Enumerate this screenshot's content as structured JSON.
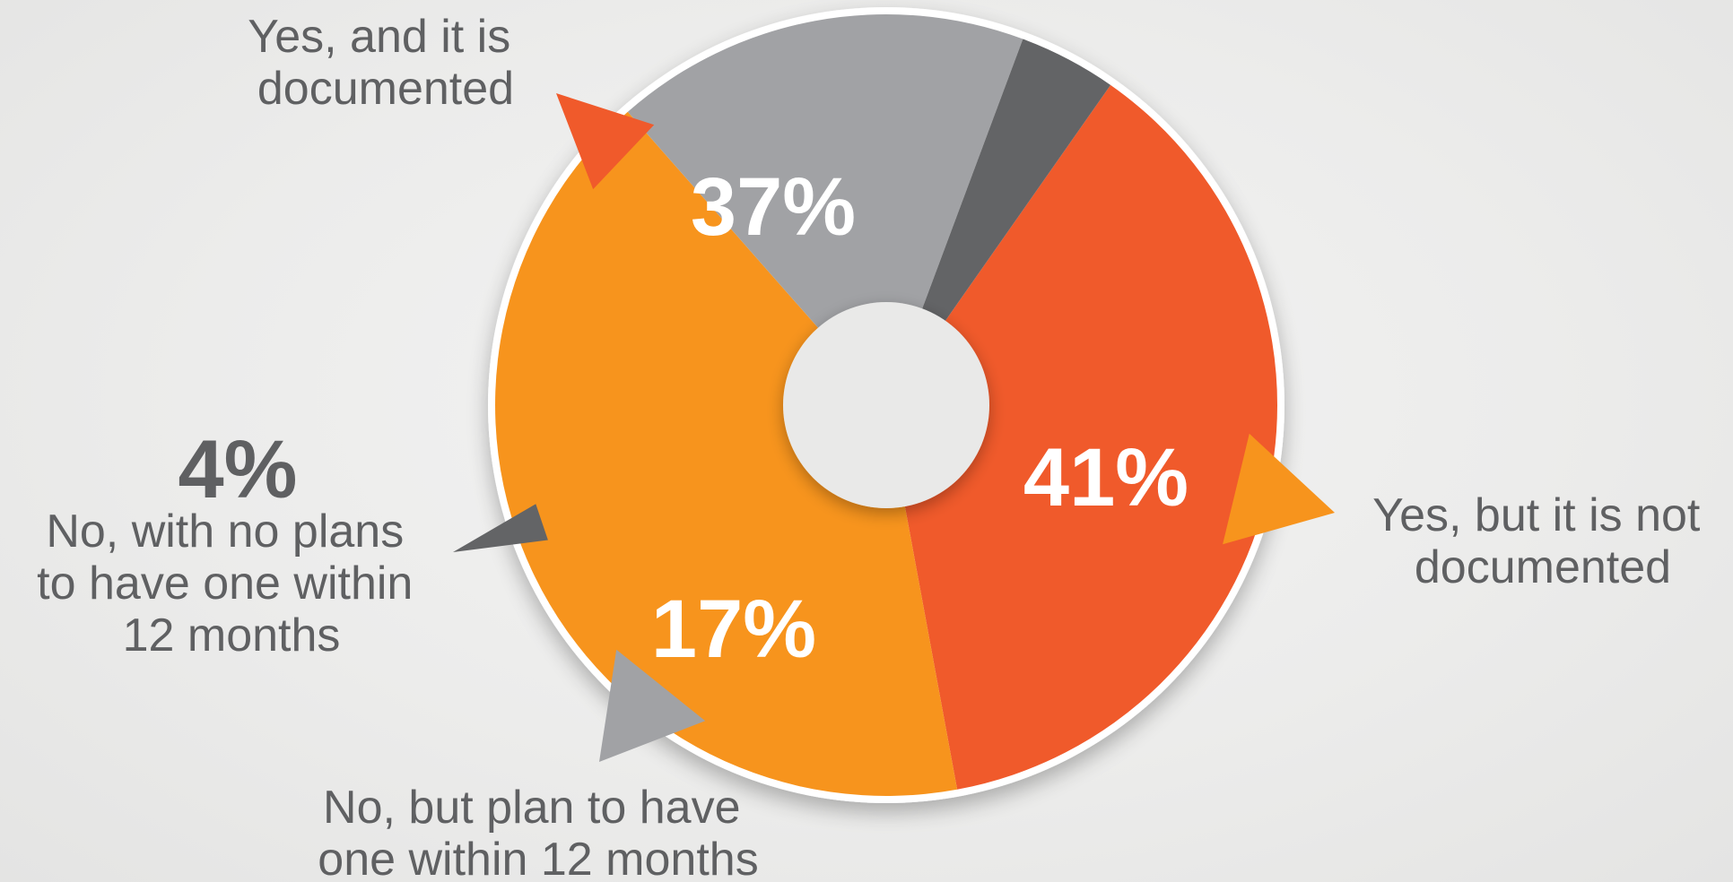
{
  "chart_data": {
    "type": "pie",
    "variant": "donut",
    "slices": [
      {
        "key": "yes_documented",
        "label_lines": [
          "Yes, and it is",
          "documented"
        ],
        "value": 37,
        "value_label": "37%",
        "color": "#f05a2b"
      },
      {
        "key": "yes_not_documented",
        "label_lines": [
          "Yes, but it is not",
          "documented"
        ],
        "value": 41,
        "value_label": "41%",
        "color": "#f7941d"
      },
      {
        "key": "no_plan",
        "label_lines": [
          "No, but plan to have",
          "one within 12 months"
        ],
        "value": 17,
        "value_label": "17%",
        "color": "#a1a2a5"
      },
      {
        "key": "no_no_plans",
        "label_lines": [
          "No, with no plans",
          "to have one within",
          "12 months"
        ],
        "value": 4,
        "value_label": "4%",
        "color": "#636466"
      }
    ],
    "legend": "none",
    "labels_position": "outside-with-callout-arrows",
    "ring_outline_color": "#ffffff",
    "text_color": "#5f6062"
  }
}
